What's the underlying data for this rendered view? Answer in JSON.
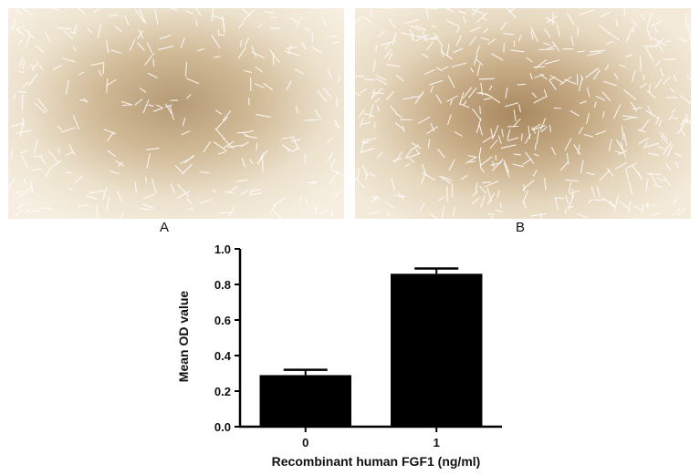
{
  "panels": [
    {
      "label": "A",
      "image": "phase-contrast micrograph of elongated cells on a brown-tinted background"
    },
    {
      "label": "B",
      "image": "phase-contrast micrograph of denser cells on a brown-tinted background"
    }
  ],
  "colors": {
    "bar": "#000000",
    "image_center": "#b59a76",
    "image_edge": "#f6efe1",
    "cell": "#ffffff"
  },
  "chart_data": {
    "type": "bar",
    "categories": [
      "0",
      "1"
    ],
    "values": [
      0.29,
      0.86
    ],
    "errors": [
      0.03,
      0.03
    ],
    "xlabel": "Recombinant human FGF1 (ng/ml)",
    "ylabel": "Mean OD value",
    "ylim": [
      0.0,
      1.0
    ],
    "yticks": [
      "0.0",
      "0.2",
      "0.4",
      "0.6",
      "0.8",
      "1.0"
    ],
    "grid": false
  }
}
